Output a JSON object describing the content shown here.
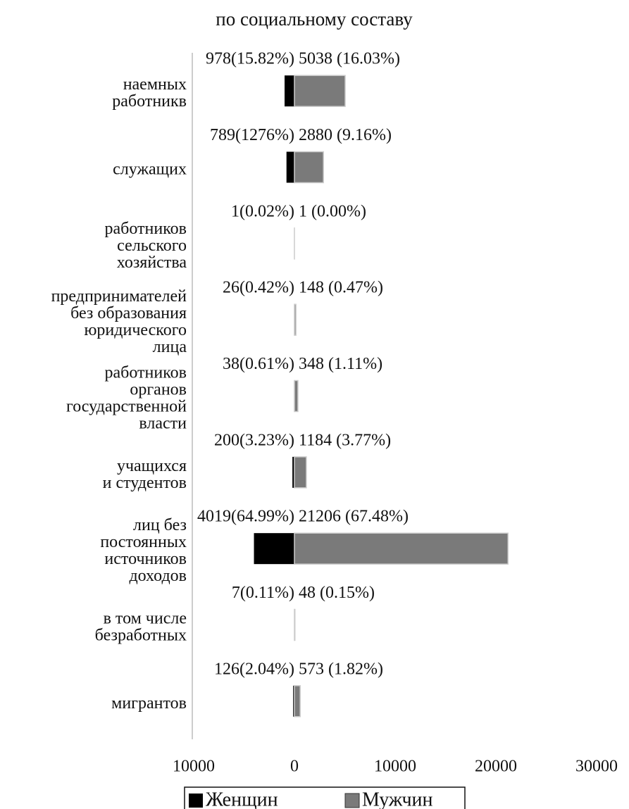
{
  "chart_data": {
    "type": "bar",
    "title": "по социальному составу",
    "categories": [
      "наемных\nработникв",
      "служащих",
      "работников\nсельского\nхозяйства",
      "предпринимателей\nбез образования\nюридического\nлица",
      "работников\nорганов\nгосударственной\nвласти",
      "учащихся\nи студентов",
      "лиц без\nпостоянных\nисточников\nдоходов",
      "в том числе\nбезработных",
      "мигрантов"
    ],
    "series": [
      {
        "name": "Женщин",
        "color": "#000000",
        "values": [
          978,
          789,
          1,
          26,
          38,
          200,
          4019,
          7,
          126
        ],
        "value_labels": [
          "978(15.82%)",
          "789(1276%)",
          "1(0.02%)",
          "26(0.42%)",
          "38(0.61%)",
          "200(3.23%)",
          "4019(64.99%)",
          "7(0.11%)",
          "126(2.04%)"
        ]
      },
      {
        "name": "Мужчин",
        "color": "#7a7a7a",
        "values": [
          5038,
          2880,
          1,
          148,
          348,
          1184,
          21206,
          48,
          573
        ],
        "value_labels": [
          "5038 (16.03%)",
          "2880 (9.16%)",
          "1 (0.00%)",
          "148 (0.47%)",
          "348 (1.11%)",
          "1184 (3.77%)",
          "21206 (67.48%)",
          "48 (0.15%)",
          "573 (1.82%)"
        ]
      }
    ],
    "xlim": [
      -10000,
      30000
    ],
    "xticks": [
      {
        "value": -10000,
        "label": "10000"
      },
      0,
      10000,
      20000,
      30000
    ],
    "grid": false
  }
}
